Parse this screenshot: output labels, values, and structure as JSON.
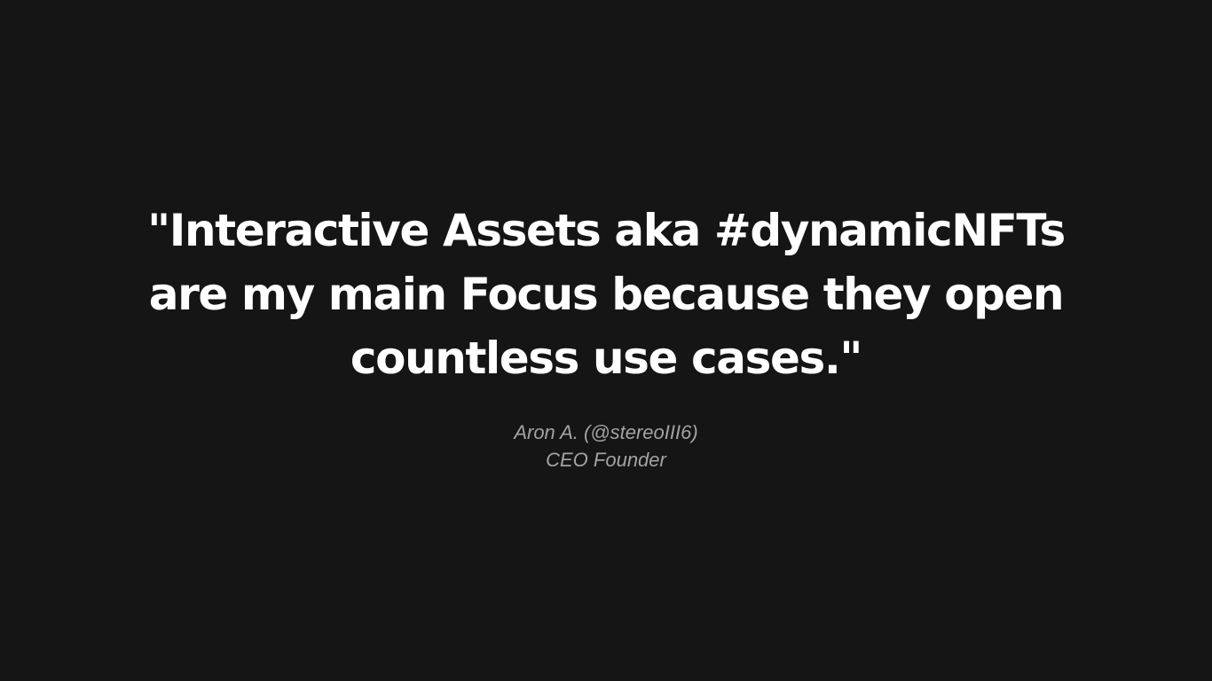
{
  "quote": {
    "lines": [
      "\"Interactive Assets aka #dynamicNFTs",
      "are my main Focus because they open",
      "countless use cases.\""
    ]
  },
  "attribution": {
    "name": "Aron A. (@stereoIII6)",
    "role": "CEO Founder"
  },
  "colors": {
    "background": "#151515",
    "quote_text": "#ffffff",
    "attribution_text": "#a3a3a3"
  }
}
